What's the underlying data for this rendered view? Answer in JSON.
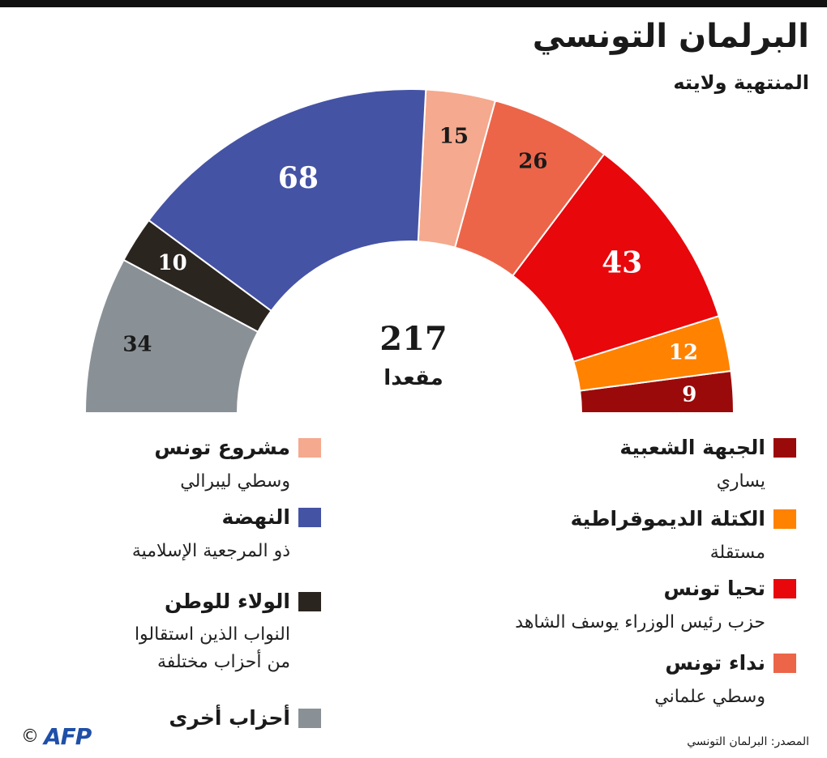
{
  "title": "البرلمان التونسي",
  "subtitle": "المنتهية ولايته",
  "chart_data": {
    "type": "pie",
    "variant": "parliament-half-donut",
    "total": 217,
    "total_label": "مقعدا",
    "series": [
      {
        "name": "الجبهة الشعبية",
        "desc": "يساري",
        "value": 9,
        "color": "#9b0a0a",
        "label_color": "#ffffff"
      },
      {
        "name": "الكتلة الديموقراطية",
        "desc": "مستقلة",
        "value": 12,
        "color": "#ff8200",
        "label_color": "#ffffff"
      },
      {
        "name": "تحيا تونس",
        "desc": "حزب رئيس الوزراء يوسف الشاهد",
        "value": 43,
        "color": "#e8070b",
        "label_color": "#ffffff"
      },
      {
        "name": "نداء تونس",
        "desc": "وسطي علماني",
        "value": 26,
        "color": "#ec6549",
        "label_color": "#1a1a1a"
      },
      {
        "name": "مشروع تونس",
        "desc": "وسطي ليبرالي",
        "value": 15,
        "color": "#f5a98e",
        "label_color": "#1a1a1a"
      },
      {
        "name": "النهضة",
        "desc": "ذو المرجعية الإسلامية",
        "value": 68,
        "color": "#4553a5",
        "label_color": "#ffffff"
      },
      {
        "name": "الولاء للوطن",
        "desc": "النواب الذين استقالوا من أحزاب مختلفة",
        "value": 10,
        "color": "#2b2520",
        "label_color": "#ffffff"
      },
      {
        "name": "أحزاب أخرى",
        "desc": "",
        "value": 34,
        "color": "#8a9196",
        "label_color": "#1a1a1a"
      }
    ]
  },
  "source": "المصدر: البرلمان التونسي",
  "credit": {
    "copyright": "©",
    "logo": "AFP"
  }
}
